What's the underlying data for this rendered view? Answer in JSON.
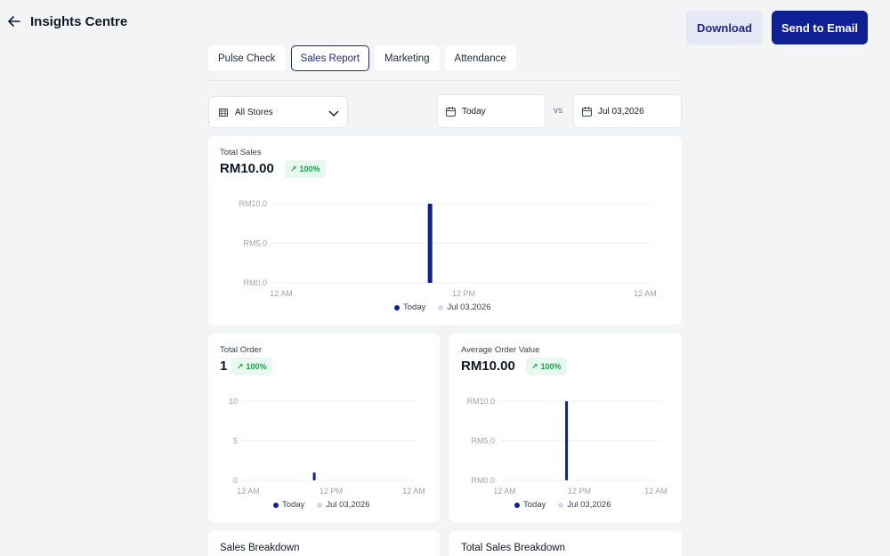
{
  "header": {
    "title": "Insights Centre",
    "download_label": "Download",
    "email_label": "Send to Email"
  },
  "tabs": [
    {
      "label": "Pulse Check",
      "active": false
    },
    {
      "label": "Sales Report",
      "active": true
    },
    {
      "label": "Marketing",
      "active": false
    },
    {
      "label": "Attendance",
      "active": false
    }
  ],
  "filters": {
    "store": "All Stores",
    "date_from": "Today",
    "vs": "vs",
    "date_to": "Jul 03,2026"
  },
  "colors": {
    "primary": "#0f1f94",
    "compare": "#d4d7ef",
    "success": "#16a34a"
  },
  "cards": {
    "total_sales": {
      "label": "Total Sales",
      "value": "RM10.00",
      "change": "100%"
    },
    "total_order": {
      "label": "Total Order",
      "value": "1",
      "change": "100%"
    },
    "aov": {
      "label": "Average Order Value",
      "value": "RM10.00",
      "change": "100%"
    }
  },
  "legend": {
    "series_a": "Today",
    "series_b": "Jul 03,2026"
  },
  "sections": {
    "sales_breakdown": "Sales Breakdown",
    "total_sales_breakdown": "Total Sales Breakdown"
  },
  "chart_data": [
    {
      "type": "bar",
      "title": "Total Sales",
      "y_ticks": [
        "RM10.0",
        "RM5.0",
        "RM0.0"
      ],
      "x_ticks": [
        "12 AM",
        "12 PM",
        "12 AM"
      ],
      "ylim": [
        0,
        10
      ],
      "series": [
        {
          "name": "Today",
          "x_hour": 10,
          "value": 10
        },
        {
          "name": "Jul 03,2026",
          "x_hour": 10,
          "value": 0
        }
      ]
    },
    {
      "type": "bar",
      "title": "Total Order",
      "y_ticks": [
        "10",
        "5",
        "0"
      ],
      "x_ticks": [
        "12 AM",
        "12 PM",
        "12 AM"
      ],
      "ylim": [
        0,
        10
      ],
      "series": [
        {
          "name": "Today",
          "x_hour": 10,
          "value": 1
        },
        {
          "name": "Jul 03,2026",
          "x_hour": 10,
          "value": 0
        }
      ]
    },
    {
      "type": "bar",
      "title": "Average Order Value",
      "y_ticks": [
        "RM10.0",
        "RM5.0",
        "RM0.0"
      ],
      "x_ticks": [
        "12 AM",
        "12 PM",
        "12 AM"
      ],
      "ylim": [
        0,
        10
      ],
      "series": [
        {
          "name": "Today",
          "x_hour": 10,
          "value": 10
        },
        {
          "name": "Jul 03,2026",
          "x_hour": 10,
          "value": 0
        }
      ]
    }
  ]
}
